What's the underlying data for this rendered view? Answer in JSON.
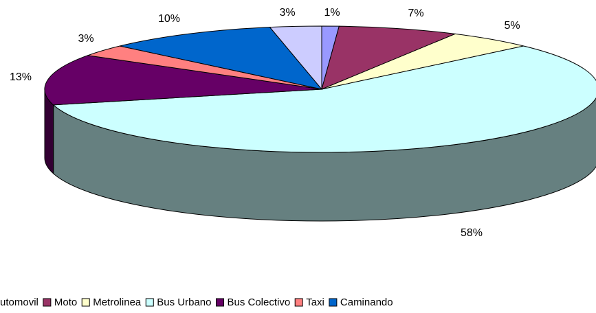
{
  "chart_data": {
    "type": "pie3d",
    "categories": [
      "Automovil",
      "Moto",
      "Metrolinea",
      "Bus Urbano",
      "Bus Colectivo",
      "Taxi",
      "Caminando",
      null
    ],
    "values": [
      1,
      7,
      5,
      58,
      13,
      3,
      10,
      3
    ],
    "value_labels": [
      "1%",
      "7%",
      "5%",
      "58%",
      "13%",
      "3%",
      "10%",
      "3%"
    ],
    "colors": [
      "#9999ff",
      "#993366",
      "#ffffcc",
      "#ccffff",
      "#660066",
      "#ff8080",
      "#0066cc",
      "#ccccff"
    ],
    "legend": "bottom"
  }
}
